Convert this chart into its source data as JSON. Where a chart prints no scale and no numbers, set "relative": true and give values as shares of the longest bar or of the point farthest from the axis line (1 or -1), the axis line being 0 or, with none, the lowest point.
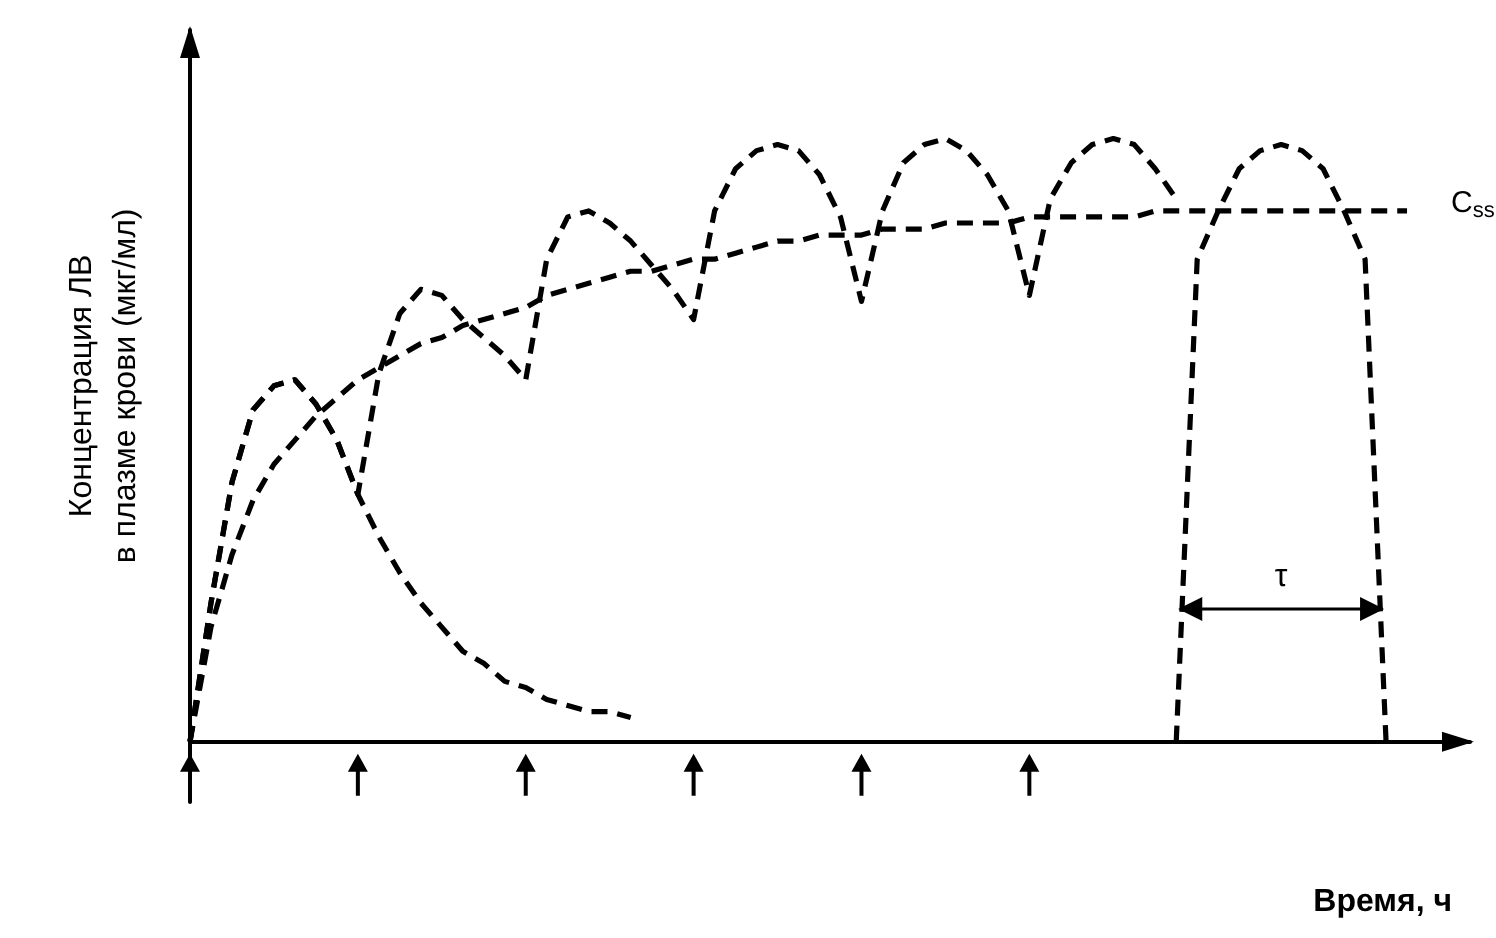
{
  "chart_data": {
    "type": "line",
    "relative": true,
    "xlabel": "Время, ч",
    "ylabel": "Концентрация ЛВ\nв плазме крови (мкг/мл)",
    "annotations": [
      "τ"
    ],
    "categories": [
      null,
      null,
      null,
      null,
      null,
      null,
      null,
      null,
      null,
      null,
      null,
      null,
      null,
      null,
      null,
      null,
      null,
      null,
      null,
      null,
      null,
      null,
      null,
      null,
      null,
      null,
      null,
      null,
      null,
      null,
      null,
      null,
      null,
      null,
      null,
      null,
      null,
      null,
      null,
      null,
      null,
      null,
      null,
      null,
      null,
      null,
      null,
      null,
      null,
      null,
      null,
      null,
      null,
      null,
      null,
      null,
      null,
      null,
      null,
      null,
      null,
      null
    ],
    "series": [
      {
        "color": "#000000",
        "values": [
          0,
          0.23,
          0.43,
          0.55,
          0.59,
          0.6,
          0.56,
          0.5,
          0.41,
          0.34,
          0.28,
          0.23,
          0.19,
          0.15,
          0.13,
          0.1,
          0.09,
          0.07,
          0.06,
          0.05,
          0.05,
          0.04,
          null,
          null,
          null,
          null,
          null,
          null,
          null,
          null,
          null,
          null,
          null,
          null,
          null,
          null,
          null,
          null,
          null,
          null,
          null,
          null,
          null,
          null,
          null,
          null,
          null,
          null,
          null,
          null,
          null,
          null,
          null,
          null,
          null,
          null,
          null,
          null,
          null,
          null,
          null,
          null
        ]
      },
      {
        "color": "#000000",
        "values": [
          0,
          0.23,
          0.43,
          0.55,
          0.59,
          0.6,
          0.56,
          0.5,
          0.41,
          0.61,
          0.71,
          0.75,
          0.74,
          0.7,
          0.67,
          0.64,
          0.6,
          0.8,
          0.87,
          0.88,
          0.86,
          0.83,
          0.79,
          0.75,
          0.7,
          0.88,
          0.95,
          0.98,
          0.99,
          0.98,
          0.94,
          0.87,
          0.73,
          0.88,
          0.96,
          0.99,
          1,
          0.98,
          0.94,
          0.88,
          0.74,
          0.9,
          0.96,
          0.99,
          1,
          0.99,
          0.95,
          0.9,
          null,
          null,
          null,
          null,
          null,
          null,
          null,
          null,
          null,
          null,
          null,
          null,
          null,
          null
        ]
      },
      {
        "color": "#000000",
        "values": [
          null,
          null,
          null,
          null,
          null,
          null,
          null,
          null,
          null,
          null,
          null,
          null,
          null,
          null,
          null,
          null,
          null,
          null,
          null,
          null,
          null,
          null,
          null,
          null,
          null,
          null,
          null,
          null,
          null,
          null,
          null,
          null,
          null,
          null,
          null,
          null,
          null,
          null,
          null,
          null,
          null,
          null,
          null,
          null,
          null,
          null,
          null,
          0,
          0.8,
          0.88,
          0.95,
          0.98,
          0.99,
          0.98,
          0.95,
          0.88,
          0.8,
          0,
          null,
          null,
          null,
          null
        ]
      },
      {
        "name": "C$_{ss}$",
        "color": "#000000",
        "values": [
          0,
          0.19,
          0.31,
          0.4,
          0.46,
          0.5,
          0.54,
          0.57,
          0.6,
          0.62,
          0.64,
          0.66,
          0.67,
          0.69,
          0.7,
          0.71,
          0.72,
          0.74,
          0.75,
          0.76,
          0.77,
          0.78,
          0.78,
          0.79,
          0.8,
          0.8,
          0.81,
          0.82,
          0.83,
          0.83,
          0.84,
          0.84,
          0.84,
          0.85,
          0.85,
          0.85,
          0.86,
          0.86,
          0.86,
          0.86,
          0.87,
          0.87,
          0.87,
          0.87,
          0.87,
          0.87,
          0.88,
          0.88,
          0.88,
          0.88,
          0.88,
          0.88,
          0.88,
          0.88,
          0.88,
          0.88,
          0.88,
          0.88,
          0.88,
          null,
          null,
          null
        ]
      }
    ],
    "line_style": "dashed",
    "marker": "none",
    "grid": false,
    "legend": false
  }
}
